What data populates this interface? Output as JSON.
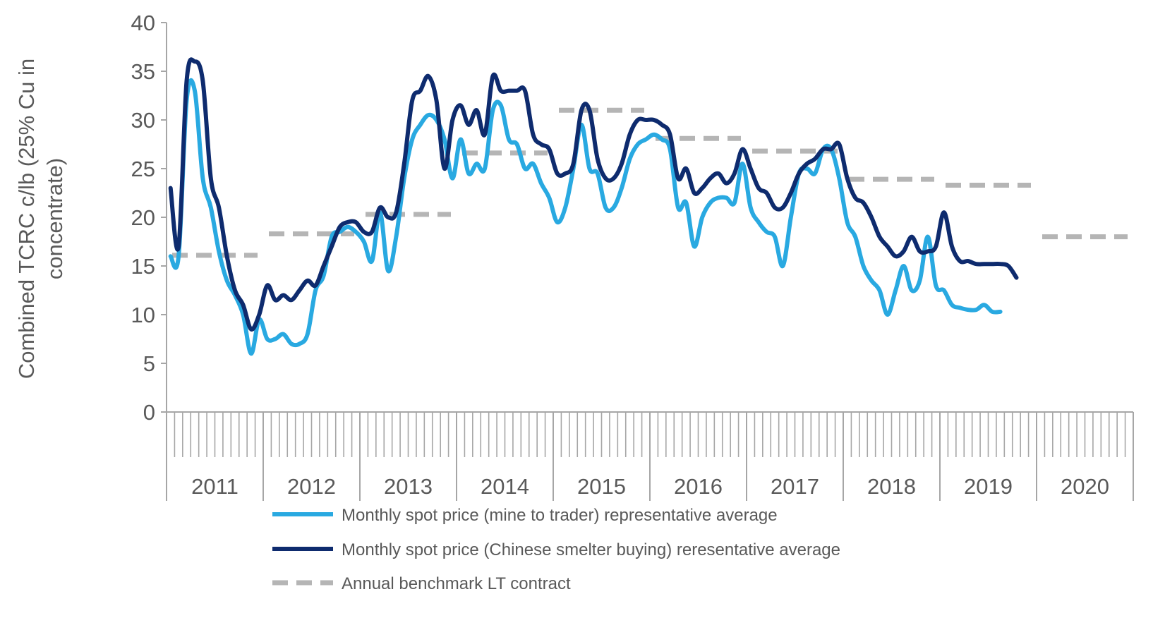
{
  "chart_data": {
    "type": "line",
    "ylabel_lines": [
      "Combined TCRC c/lb (25% Cu in",
      "concentrate)"
    ],
    "ylim": [
      0,
      40
    ],
    "yticks": [
      0,
      5,
      10,
      15,
      20,
      25,
      30,
      35,
      40
    ],
    "years": [
      "2011",
      "2012",
      "2013",
      "2014",
      "2015",
      "2016",
      "2017",
      "2018",
      "2019",
      "2020"
    ],
    "months_per_year": 12,
    "grid": false,
    "legend_position": "bottom",
    "colors": {
      "mine_to_trader": "#29a9e1",
      "chinese_smelter": "#0e2b6e",
      "benchmark": "#b5b5b5",
      "axis": "#a6a6a6",
      "text": "#595959"
    },
    "series": [
      {
        "name": "Monthly spot price (mine to trader) representative average",
        "key": "mine_to_trader",
        "style": "solid",
        "values": [
          16.0,
          16.0,
          32.0,
          33.0,
          24.0,
          21.0,
          16.5,
          13.5,
          12.0,
          10.0,
          6.0,
          9.5,
          7.5,
          7.5,
          8.0,
          7.0,
          7.0,
          8.0,
          12.5,
          14.0,
          18.0,
          18.5,
          19.0,
          18.5,
          17.5,
          15.5,
          20.5,
          14.5,
          18.0,
          24.0,
          28.0,
          29.5,
          30.5,
          30.0,
          28.0,
          24.0,
          28.0,
          24.5,
          25.5,
          25.0,
          31.0,
          31.5,
          28.0,
          27.5,
          25.0,
          25.5,
          23.5,
          22.0,
          19.5,
          21.0,
          25.0,
          29.5,
          25.0,
          24.5,
          21.0,
          21.0,
          23.0,
          26.0,
          27.5,
          28.0,
          28.5,
          28.0,
          27.0,
          21.0,
          21.5,
          17.0,
          20.0,
          21.5,
          22.0,
          22.0,
          21.5,
          25.5,
          21.0,
          19.5,
          18.5,
          18.0,
          15.0,
          20.0,
          24.5,
          25.0,
          24.5,
          27.0,
          27.0,
          24.0,
          19.5,
          18.0,
          15.0,
          13.5,
          12.5,
          10.0,
          12.5,
          15.0,
          12.5,
          13.5,
          18.0,
          13.0,
          12.5,
          11.0,
          10.7,
          10.5,
          10.5,
          11.0,
          10.3,
          10.3
        ]
      },
      {
        "name": "Monthly spot price (Chinese smelter buying) reresentative average",
        "key": "chinese_smelter",
        "style": "solid",
        "values": [
          23.0,
          17.0,
          34.0,
          36.0,
          34.0,
          24.0,
          21.0,
          16.0,
          12.5,
          11.0,
          8.5,
          10.0,
          13.0,
          11.5,
          12.0,
          11.5,
          12.5,
          13.5,
          13.0,
          15.0,
          17.0,
          19.0,
          19.5,
          19.5,
          18.5,
          18.5,
          21.0,
          20.0,
          20.5,
          25.5,
          32.0,
          33.0,
          34.5,
          32.0,
          25.0,
          30.0,
          31.5,
          29.5,
          31.0,
          28.5,
          34.5,
          33.0,
          33.0,
          33.0,
          33.0,
          28.5,
          27.5,
          27.0,
          24.5,
          24.5,
          25.5,
          31.0,
          31.0,
          26.0,
          24.0,
          24.0,
          25.5,
          28.5,
          30.0,
          30.0,
          30.0,
          29.5,
          28.5,
          24.0,
          25.0,
          22.5,
          23.0,
          24.0,
          24.5,
          23.5,
          24.5,
          27.0,
          25.0,
          23.0,
          22.5,
          21.0,
          21.0,
          22.5,
          24.5,
          25.5,
          26.0,
          27.0,
          27.0,
          27.5,
          24.0,
          22.0,
          21.5,
          20.0,
          18.0,
          17.0,
          16.0,
          16.5,
          18.0,
          16.5,
          16.5,
          17.0,
          20.5,
          17.0,
          15.5,
          15.5,
          15.2,
          15.2,
          15.2,
          15.2,
          15.0,
          13.8
        ]
      },
      {
        "name": "Annual benchmark LT contract",
        "key": "benchmark",
        "style": "dashed",
        "annual_values": [
          16.1,
          18.3,
          20.3,
          26.6,
          31.0,
          28.1,
          26.8,
          23.9,
          23.3,
          18.0
        ]
      }
    ]
  }
}
